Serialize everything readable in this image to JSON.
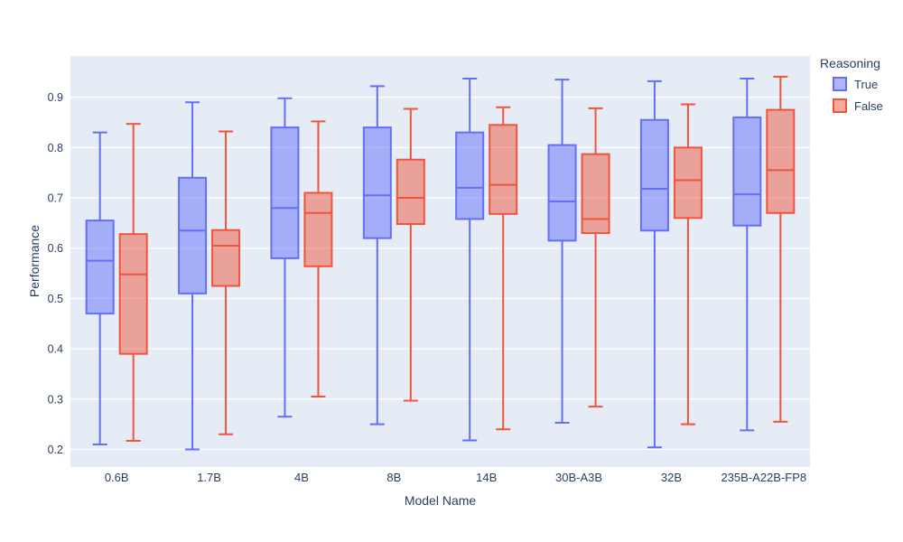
{
  "chart_data": {
    "type": "box",
    "title": "",
    "xlabel": "Model Name",
    "ylabel": "Performance",
    "categories": [
      "0.6B",
      "1.7B",
      "4B",
      "8B",
      "14B",
      "30B-A3B",
      "32B",
      "235B-A22B-FP8"
    ],
    "series": [
      {
        "name": "True",
        "color": "#636EFA",
        "boxes": [
          {
            "low": 0.21,
            "q1": 0.47,
            "median": 0.575,
            "q3": 0.655,
            "high": 0.83
          },
          {
            "low": 0.2,
            "q1": 0.51,
            "median": 0.635,
            "q3": 0.74,
            "high": 0.89
          },
          {
            "low": 0.265,
            "q1": 0.58,
            "median": 0.68,
            "q3": 0.84,
            "high": 0.898
          },
          {
            "low": 0.25,
            "q1": 0.62,
            "median": 0.705,
            "q3": 0.84,
            "high": 0.922
          },
          {
            "low": 0.218,
            "q1": 0.658,
            "median": 0.72,
            "q3": 0.83,
            "high": 0.937
          },
          {
            "low": 0.253,
            "q1": 0.615,
            "median": 0.693,
            "q3": 0.805,
            "high": 0.935
          },
          {
            "low": 0.204,
            "q1": 0.635,
            "median": 0.718,
            "q3": 0.855,
            "high": 0.932
          },
          {
            "low": 0.238,
            "q1": 0.645,
            "median": 0.707,
            "q3": 0.86,
            "high": 0.937
          }
        ]
      },
      {
        "name": "False",
        "color": "#EF553B",
        "boxes": [
          {
            "low": 0.217,
            "q1": 0.39,
            "median": 0.548,
            "q3": 0.628,
            "high": 0.847
          },
          {
            "low": 0.23,
            "q1": 0.525,
            "median": 0.605,
            "q3": 0.636,
            "high": 0.832
          },
          {
            "low": 0.305,
            "q1": 0.564,
            "median": 0.67,
            "q3": 0.71,
            "high": 0.852
          },
          {
            "low": 0.297,
            "q1": 0.648,
            "median": 0.7,
            "q3": 0.776,
            "high": 0.877
          },
          {
            "low": 0.24,
            "q1": 0.668,
            "median": 0.726,
            "q3": 0.845,
            "high": 0.88
          },
          {
            "low": 0.285,
            "q1": 0.63,
            "median": 0.658,
            "q3": 0.787,
            "high": 0.878
          },
          {
            "low": 0.25,
            "q1": 0.66,
            "median": 0.735,
            "q3": 0.8,
            "high": 0.886
          },
          {
            "low": 0.255,
            "q1": 0.67,
            "median": 0.755,
            "q3": 0.875,
            "high": 0.941
          }
        ]
      }
    ],
    "yticks": [
      0.2,
      0.3,
      0.4,
      0.5,
      0.6,
      0.7,
      0.8,
      0.9
    ],
    "ylim": [
      0.165,
      0.982
    ],
    "grid": true,
    "legend": {
      "title": "Reasoning",
      "position": "top-right",
      "items": [
        {
          "label": "True",
          "color": "#636EFA"
        },
        {
          "label": "False",
          "color": "#EF553B"
        }
      ]
    },
    "colors": {
      "plot_bg": "#E5ECF6",
      "grid": "#FFFFFF",
      "text": "#2A3F5F",
      "paper": "#FFFFFF"
    }
  }
}
